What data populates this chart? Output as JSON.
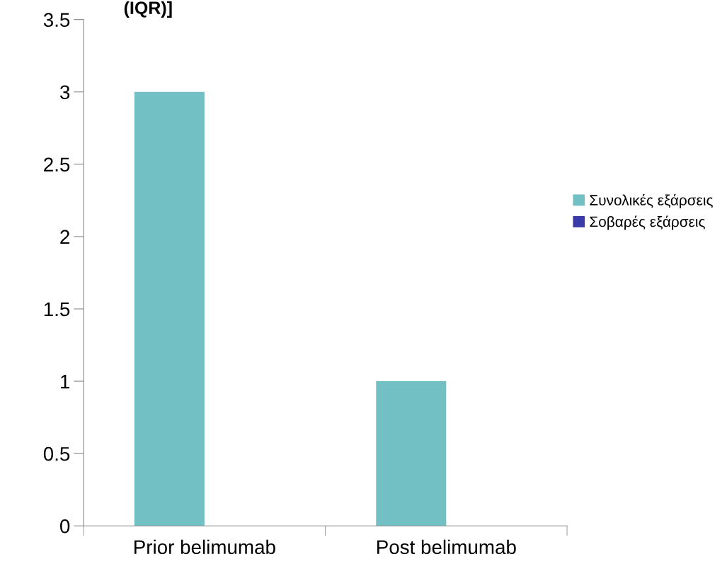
{
  "chart_data": {
    "type": "bar",
    "title": "(IQR)]",
    "categories": [
      "Prior belimumab",
      "Post belimumab"
    ],
    "series": [
      {
        "name": "Συνολικές εξάρσεις",
        "color": "#72bfc4",
        "values": [
          3,
          1
        ]
      },
      {
        "name": "Σοβαρές εξάρσεις",
        "color": "#3a3aa8",
        "values": [
          0,
          0
        ]
      }
    ],
    "ylim": [
      0,
      3.5
    ],
    "yticks": [
      0,
      0.5,
      1,
      1.5,
      2,
      2.5,
      3,
      3.5
    ],
    "legend": "right"
  }
}
